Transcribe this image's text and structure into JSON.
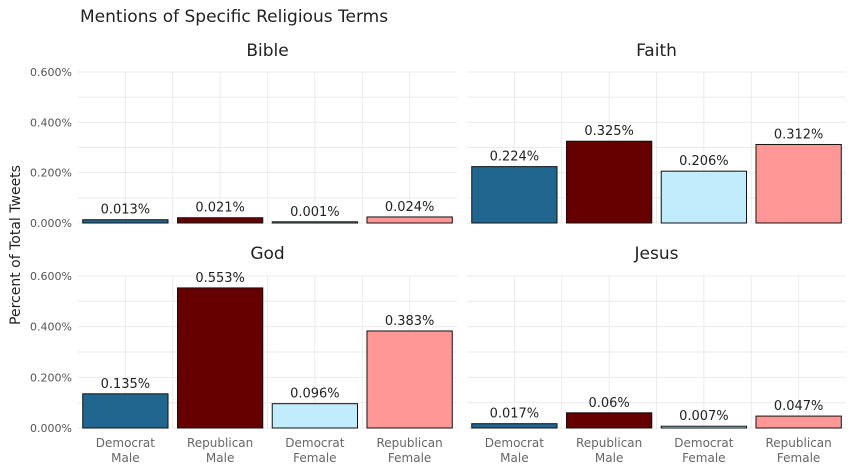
{
  "chart_data": {
    "type": "bar",
    "title": "Mentions of Specific Religious Terms",
    "ylabel": "Percent of Total Tweets",
    "xlabel": "",
    "categories": [
      "Democrat Male",
      "Republican Male",
      "Democrat Female",
      "Republican Female"
    ],
    "category_lines": [
      [
        "Democrat",
        "Male"
      ],
      [
        "Republican",
        "Male"
      ],
      [
        "Democrat",
        "Female"
      ],
      [
        "Republican",
        "Female"
      ]
    ],
    "colors": [
      "#21668f",
      "#660000",
      "#c1ecfb",
      "#ff9797"
    ],
    "ylim": [
      0,
      0.6
    ],
    "yticks": [
      0,
      0.2,
      0.4,
      0.6
    ],
    "ytick_labels": [
      "0.000%",
      "0.200%",
      "0.400%",
      "0.600%"
    ],
    "grid": true,
    "facets": [
      {
        "name": "Bible",
        "values": [
          0.013,
          0.021,
          0.001,
          0.024
        ],
        "labels": [
          "0.013%",
          "0.021%",
          "0.001%",
          "0.024%"
        ]
      },
      {
        "name": "Faith",
        "values": [
          0.224,
          0.325,
          0.206,
          0.312
        ],
        "labels": [
          "0.224%",
          "0.325%",
          "0.206%",
          "0.312%"
        ]
      },
      {
        "name": "God",
        "values": [
          0.135,
          0.553,
          0.096,
          0.383
        ],
        "labels": [
          "0.135%",
          "0.553%",
          "0.096%",
          "0.383%"
        ]
      },
      {
        "name": "Jesus",
        "values": [
          0.017,
          0.06,
          0.007,
          0.047
        ],
        "labels": [
          "0.017%",
          "0.06%",
          "0.007%",
          "0.047%"
        ]
      }
    ]
  }
}
